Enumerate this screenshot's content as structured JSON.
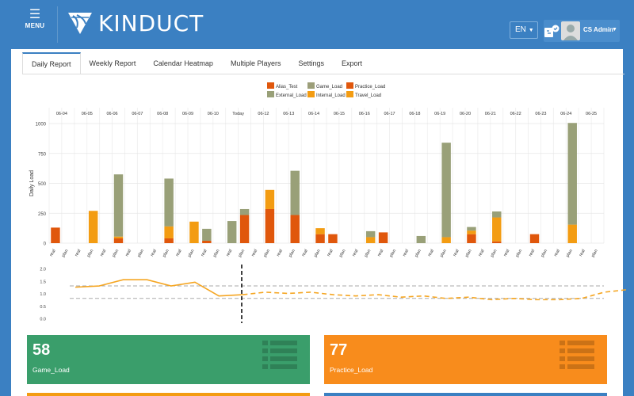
{
  "app": {
    "menu_label": "MENU",
    "brand": "KINDUCT",
    "language": "EN",
    "user": "CS Admin"
  },
  "tabs": [
    {
      "label": "Daily Report",
      "active": true
    },
    {
      "label": "Weekly Report",
      "active": false
    },
    {
      "label": "Calendar Heatmap",
      "active": false
    },
    {
      "label": "Multiple Players",
      "active": false
    },
    {
      "label": "Settings",
      "active": false
    },
    {
      "label": "Export",
      "active": false
    }
  ],
  "chart_data": [
    {
      "type": "bar",
      "stacked": true,
      "ylabel": "Daily Load",
      "ylim": [
        0,
        1000
      ],
      "yticks": [
        0,
        250,
        500,
        750,
        1000
      ],
      "grid": true,
      "legend_position": "top-center",
      "categories": [
        "06-04",
        "06-05",
        "06-06",
        "06-07",
        "06-08",
        "06-09",
        "06-10",
        "Today",
        "06-12",
        "06-13",
        "06-14",
        "06-15",
        "06-16",
        "06-17",
        "06-18",
        "06-19",
        "06-20",
        "06-21",
        "06-22",
        "06-23",
        "06-24",
        "06-25"
      ],
      "sub_labels": [
        "real",
        "plan"
      ],
      "series": [
        {
          "name": "Alias_Test",
          "color": "#e0570c",
          "values": [
            [
              0,
              0
            ],
            [
              0,
              0
            ],
            [
              0,
              0
            ],
            [
              0,
              0
            ],
            [
              0,
              0
            ],
            [
              0,
              0
            ],
            [
              0,
              0
            ],
            [
              0,
              0
            ],
            [
              0,
              0
            ],
            [
              0,
              0
            ],
            [
              0,
              0
            ],
            [
              0,
              0
            ],
            [
              0,
              0
            ],
            [
              0,
              0
            ],
            [
              0,
              0
            ],
            [
              0,
              0
            ],
            [
              0,
              0
            ],
            [
              0,
              0
            ],
            [
              0,
              0
            ],
            [
              0,
              0
            ],
            [
              0,
              0
            ],
            [
              0,
              0
            ]
          ]
        },
        {
          "name": "External_Load",
          "color": "#99a078",
          "values": [
            [
              0,
              0
            ],
            [
              0,
              0
            ],
            [
              0,
              520
            ],
            [
              0,
              0
            ],
            [
              0,
              400
            ],
            [
              0,
              0
            ],
            [
              100,
              0
            ],
            [
              185,
              50
            ],
            [
              0,
              0
            ],
            [
              0,
              370
            ],
            [
              0,
              0
            ],
            [
              0,
              0
            ],
            [
              0,
              50
            ],
            [
              0,
              0
            ],
            [
              0,
              60
            ],
            [
              0,
              790
            ],
            [
              0,
              30
            ],
            [
              0,
              50
            ],
            [
              0,
              0
            ],
            [
              0,
              0
            ],
            [
              0,
              850
            ],
            [
              0,
              0
            ]
          ]
        },
        {
          "name": "Game_Load",
          "color": "#9c9e79",
          "values": [
            [
              0,
              0
            ],
            [
              0,
              0
            ],
            [
              0,
              0
            ],
            [
              0,
              0
            ],
            [
              0,
              0
            ],
            [
              0,
              0
            ],
            [
              0,
              0
            ],
            [
              0,
              0
            ],
            [
              0,
              0
            ],
            [
              0,
              0
            ],
            [
              0,
              0
            ],
            [
              0,
              0
            ],
            [
              0,
              0
            ],
            [
              0,
              0
            ],
            [
              0,
              0
            ],
            [
              0,
              0
            ],
            [
              0,
              0
            ],
            [
              0,
              0
            ],
            [
              0,
              0
            ],
            [
              0,
              0
            ],
            [
              0,
              0
            ],
            [
              0,
              0
            ]
          ]
        },
        {
          "name": "Internal_Load",
          "color": "#f39c12",
          "values": [
            [
              0,
              0
            ],
            [
              0,
              270
            ],
            [
              0,
              15
            ],
            [
              0,
              0
            ],
            [
              0,
              100
            ],
            [
              0,
              180
            ],
            [
              0,
              0
            ],
            [
              0,
              0
            ],
            [
              0,
              160
            ],
            [
              0,
              0
            ],
            [
              0,
              50
            ],
            [
              0,
              0
            ],
            [
              0,
              50
            ],
            [
              0,
              0
            ],
            [
              0,
              0
            ],
            [
              0,
              50
            ],
            [
              0,
              30
            ],
            [
              0,
              200
            ],
            [
              0,
              0
            ],
            [
              0,
              0
            ],
            [
              0,
              155
            ],
            [
              0,
              0
            ]
          ]
        },
        {
          "name": "Practice_Load",
          "color": "#e0570c",
          "values": [
            [
              130,
              0
            ],
            [
              0,
              0
            ],
            [
              0,
              40
            ],
            [
              0,
              0
            ],
            [
              0,
              40
            ],
            [
              0,
              0
            ],
            [
              20,
              0
            ],
            [
              0,
              235
            ],
            [
              0,
              285
            ],
            [
              0,
              235
            ],
            [
              0,
              75
            ],
            [
              75,
              0
            ],
            [
              0,
              0
            ],
            [
              90,
              0
            ],
            [
              0,
              0
            ],
            [
              0,
              0
            ],
            [
              0,
              75
            ],
            [
              0,
              15
            ],
            [
              0,
              0
            ],
            [
              75,
              0
            ],
            [
              0,
              0
            ],
            [
              0,
              0
            ]
          ]
        },
        {
          "name": "Travel_Load",
          "color": "#f39c12",
          "values": [
            [
              0,
              0
            ],
            [
              0,
              0
            ],
            [
              0,
              0
            ],
            [
              0,
              0
            ],
            [
              0,
              0
            ],
            [
              0,
              0
            ],
            [
              0,
              0
            ],
            [
              0,
              0
            ],
            [
              0,
              0
            ],
            [
              0,
              0
            ],
            [
              0,
              0
            ],
            [
              0,
              0
            ],
            [
              0,
              0
            ],
            [
              0,
              0
            ],
            [
              0,
              0
            ],
            [
              0,
              0
            ],
            [
              0,
              0
            ],
            [
              0,
              0
            ],
            [
              0,
              0
            ],
            [
              0,
              0
            ],
            [
              0,
              0
            ],
            [
              0,
              0
            ]
          ]
        }
      ]
    },
    {
      "type": "line",
      "ylim": [
        0,
        2
      ],
      "yticks": [
        "2.0",
        "1.5",
        "1.0",
        "0.5",
        "0.0"
      ],
      "reference_lines": [
        1.3,
        0.8
      ],
      "actual": [
        1.25,
        1.3,
        1.55,
        1.55,
        1.3,
        1.45,
        0.9,
        0.95
      ],
      "projected": [
        0.95,
        1.05,
        1.0,
        1.05,
        0.95,
        0.9,
        0.95,
        0.85,
        0.9,
        0.8,
        0.85,
        0.75,
        0.8,
        0.75,
        0.75,
        0.8,
        1.05,
        1.15
      ],
      "today_index": 7
    }
  ],
  "cards": [
    {
      "value": "58",
      "label": "Game_Load",
      "color": "#3a9e6b"
    },
    {
      "value": "77",
      "label": "Practice_Load",
      "color": "#f88c1c"
    }
  ],
  "colors": {
    "topbar": "#3b80c2",
    "accent": "#3b80c2"
  }
}
